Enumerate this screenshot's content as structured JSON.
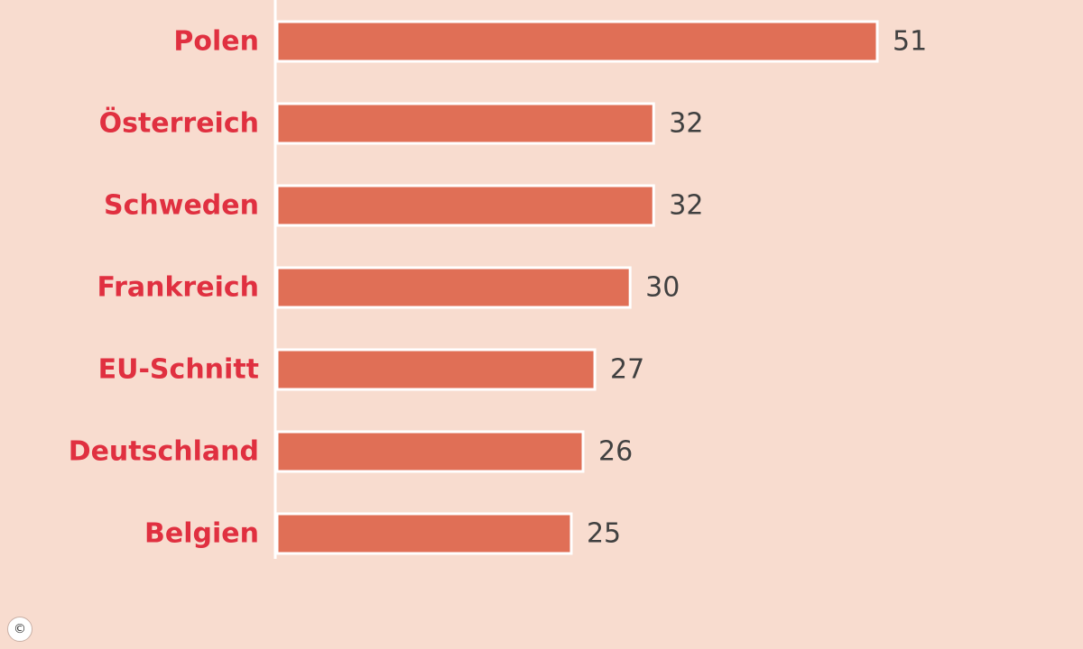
{
  "chart_data": {
    "type": "bar",
    "orientation": "horizontal",
    "categories": [
      "Polen",
      "Österreich",
      "Schweden",
      "Frankreich",
      "EU-Schnitt",
      "Deutschland",
      "Belgien"
    ],
    "values": [
      51,
      32,
      32,
      30,
      27,
      26,
      25
    ],
    "title": "",
    "xlabel": "",
    "ylabel": "",
    "xlim": [
      0,
      51
    ],
    "grid": false,
    "legend": "none"
  },
  "colors": {
    "background": "#f8dccf",
    "bar": "#e06f56",
    "bar_outline": "#ffffff",
    "category_label": "#e03040",
    "value_label": "#404040",
    "axis_line": "#ffffff"
  },
  "copyright": "©"
}
